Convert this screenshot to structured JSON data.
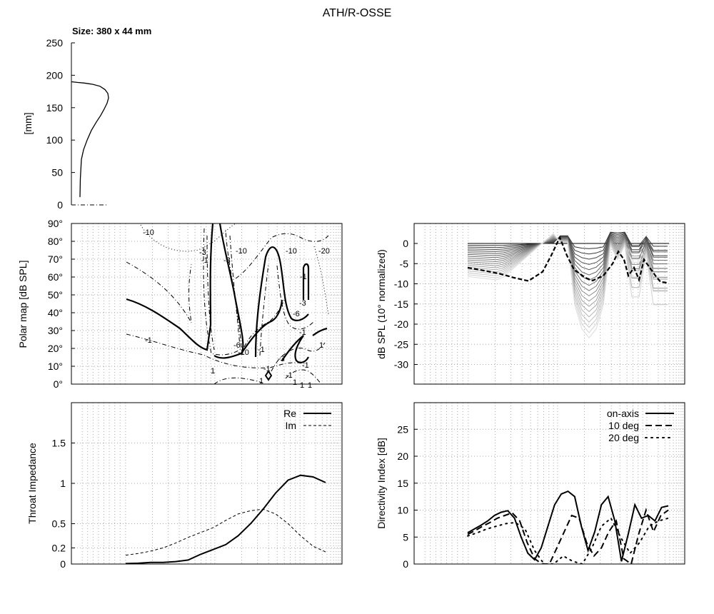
{
  "title": "ATH/R-OSSE",
  "size_label": "Size: 380 x 44 mm",
  "chart_data": [
    {
      "id": "profile",
      "type": "line",
      "ylabel": "[mm]",
      "ylim": [
        0,
        250
      ],
      "yticks": [
        0,
        50,
        100,
        150,
        200,
        250
      ],
      "series": [
        {
          "x": [
            12,
            12.5,
            14,
            17,
            22,
            28,
            35,
            41,
            46,
            50,
            52,
            51,
            47,
            40,
            30,
            18,
            8,
            0
          ],
          "y": [
            12,
            40,
            70,
            85,
            100,
            115,
            128,
            138,
            148,
            157,
            165,
            172,
            178,
            183,
            186,
            188,
            189,
            190
          ]
        }
      ],
      "axis_line": {
        "x": [
          0,
          50
        ],
        "y": [
          0,
          0
        ]
      }
    },
    {
      "id": "polar-map",
      "type": "contour",
      "ylabel": "Polar map [dB SPL]",
      "yticks": [
        "0°",
        "10°",
        "20°",
        "30°",
        "40°",
        "50°",
        "60°",
        "70°",
        "80°",
        "90°"
      ],
      "contour_labels": [
        "-10",
        "-3",
        "-1",
        "-10",
        "-3",
        "-10",
        "-20",
        "-1",
        "-3",
        "-6",
        "-1",
        "-1",
        "-6",
        "-10",
        "-1",
        "-3",
        "-1",
        "1",
        "-1",
        "1",
        "-1",
        "1",
        "1",
        "1",
        "1"
      ]
    },
    {
      "id": "normalized-spl",
      "type": "line",
      "ylabel": "dB SPL (10° normalized)",
      "ylim": [
        -34,
        5
      ],
      "yticks": [
        0,
        -5,
        -10,
        -15,
        -20,
        -25,
        -30
      ]
    },
    {
      "id": "throat-impedance",
      "type": "line",
      "ylabel": "Throat Impedance",
      "ylim": [
        0,
        2
      ],
      "yticks": [
        "0",
        "0.2",
        "0.5",
        "1",
        "1.5"
      ],
      "series": [
        {
          "name": "Re",
          "values": [
            0.005,
            0.01,
            0.02,
            0.02,
            0.03,
            0.05,
            0.12,
            0.18,
            0.24,
            0.35,
            0.5,
            0.68,
            0.88,
            1.04,
            1.1,
            1.08,
            1.01
          ]
        },
        {
          "name": "Im",
          "values": [
            0.11,
            0.13,
            0.16,
            0.2,
            0.26,
            0.33,
            0.39,
            0.45,
            0.54,
            0.62,
            0.66,
            0.68,
            0.62,
            0.5,
            0.35,
            0.22,
            0.15
          ]
        }
      ]
    },
    {
      "id": "directivity-index",
      "type": "line",
      "ylabel": "Directivity Index [dB]",
      "ylim": [
        0,
        30
      ],
      "yticks": [
        0,
        5,
        10,
        15,
        20,
        25
      ],
      "series": [
        {
          "name": "on-axis",
          "values": [
            5.8,
            6.5,
            7.2,
            8.0,
            9.0,
            9.6,
            9.9,
            8.5,
            5.0,
            2.0,
            0.8,
            3.0,
            7.0,
            11.0,
            13.0,
            13.5,
            12.5,
            7.0,
            2.5,
            6.0,
            11.0,
            12.5,
            8.0,
            0.5,
            5.5,
            11.0,
            8.5,
            9.0,
            8.0,
            10.5,
            10.8
          ]
        },
        {
          "name": "10 deg",
          "values": [
            5.5,
            6.2,
            7.0,
            7.7,
            8.5,
            9.0,
            9.5,
            8.0,
            4.0,
            1.0,
            0.0,
            0.0,
            3.0,
            6.0,
            9.0,
            8.5,
            4.0,
            1.5,
            3.0,
            6.0,
            8.0,
            1.0,
            0.0,
            5.5,
            10.0,
            6.0,
            9.0,
            10.0
          ]
        },
        {
          "name": "20 deg",
          "values": [
            5.2,
            5.8,
            6.5,
            7.0,
            7.5,
            7.7,
            6.5,
            2.5,
            0.0,
            0.0,
            1.5,
            0.5,
            0.0,
            3.0,
            7.0,
            8.5,
            5.0,
            2.0,
            4.0,
            7.0,
            8.0,
            8.5
          ]
        }
      ]
    }
  ]
}
